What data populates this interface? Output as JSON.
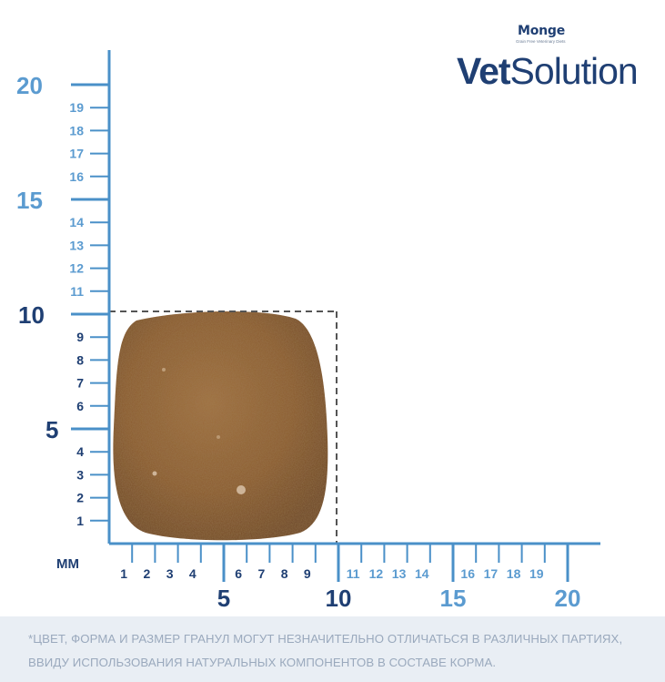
{
  "brand": {
    "monge": "Monge",
    "monge_tagline": "Grain Free Veterinary Diets",
    "vet": "Vet",
    "solution": "Solution"
  },
  "scale": {
    "unit_label": "мм",
    "y_major": [
      "20",
      "15",
      "10",
      "5"
    ],
    "y_minor": [
      "19",
      "18",
      "17",
      "16",
      "14",
      "13",
      "12",
      "11",
      "9",
      "8",
      "7",
      "6",
      "4",
      "3",
      "2",
      "1"
    ],
    "x_major": [
      "5",
      "10",
      "15",
      "20"
    ],
    "x_minor": [
      "1",
      "2",
      "3",
      "4",
      "6",
      "7",
      "8",
      "9",
      "11",
      "12",
      "13",
      "14",
      "16",
      "17",
      "18",
      "19"
    ]
  },
  "granule": {
    "width_mm": 10,
    "height_mm": 10
  },
  "disclaimer": {
    "line1": "*ЦВЕТ, ФОРМА И РАЗМЕР ГРАНУЛ МОГУТ НЕЗНАЧИТЕЛЬНО ОТЛИЧАТЬСЯ В РАЗЛИЧНЫХ ПАРТИЯХ,",
    "line2": "ВВИДУ ИСПОЛЬЗОВАНИЯ НАТУРАЛЬНЫХ КОМПОНЕНТОВ В СОСТАВЕ КОРМА."
  },
  "colors": {
    "axis": "#4a90c8",
    "label_light": "#5b9bd0",
    "label_dark": "#1f3f73",
    "kibble": "#8b5a2b",
    "dash": "#555555"
  }
}
